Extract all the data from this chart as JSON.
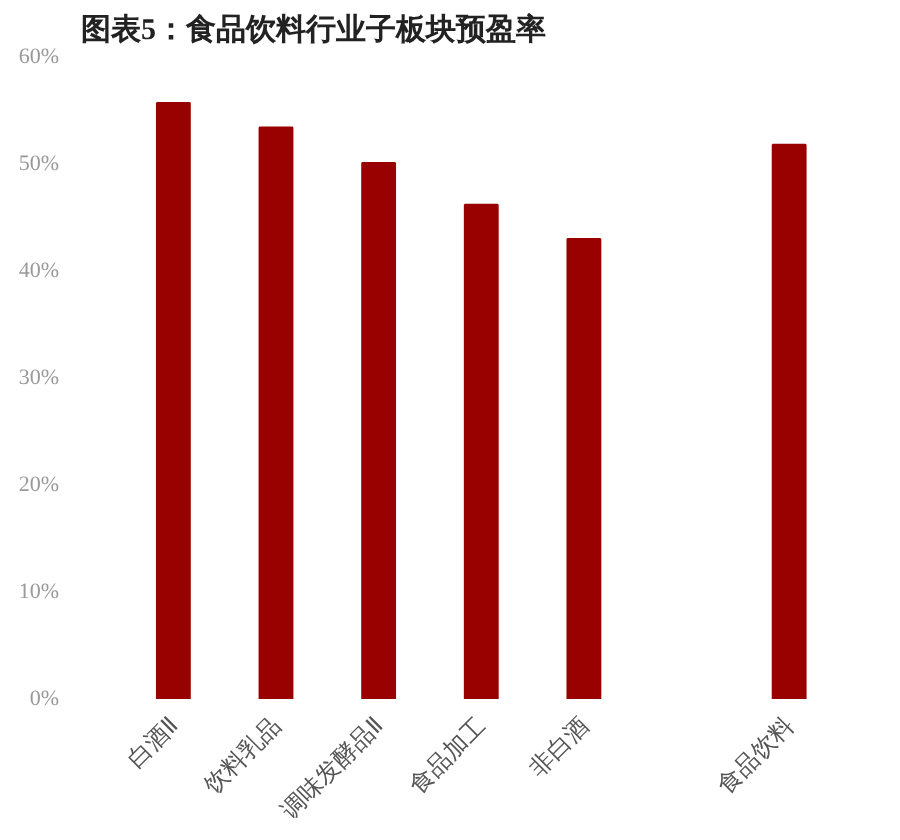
{
  "chart_data": {
    "type": "bar",
    "title": "图表5：食品饮料行业子板块预盈率",
    "categories": [
      "白酒Ⅱ",
      "饮料乳品",
      "调味发酵品Ⅱ",
      "食品加工",
      "非白酒",
      null,
      "食品饮料"
    ],
    "values": [
      55.7,
      53.4,
      50.1,
      46.2,
      43.0,
      null,
      51.8
    ],
    "color": "#990000",
    "ylim": [
      0,
      60
    ],
    "yticks": [
      {
        "value": 0,
        "label": "0%"
      },
      {
        "value": 10,
        "label": "10%"
      },
      {
        "value": 20,
        "label": "20%"
      },
      {
        "value": 30,
        "label": "30%"
      },
      {
        "value": 40,
        "label": "40%"
      },
      {
        "value": 50,
        "label": "50%"
      },
      {
        "value": 60,
        "label": "60%"
      }
    ],
    "grid": false
  }
}
